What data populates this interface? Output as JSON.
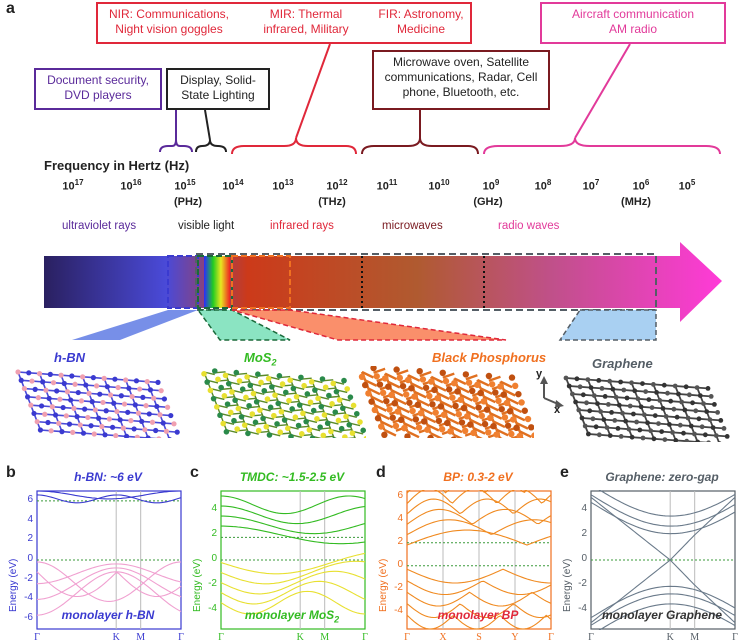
{
  "panel_a": {
    "letter": "a",
    "freq_heading": "Frequency in Hertz (Hz)",
    "frequencies": [
      {
        "base": "10",
        "exp": "17"
      },
      {
        "base": "10",
        "exp": "16"
      },
      {
        "base": "10",
        "exp": "15"
      },
      {
        "base": "10",
        "exp": "14"
      },
      {
        "base": "10",
        "exp": "13"
      },
      {
        "base": "10",
        "exp": "12"
      },
      {
        "base": "10",
        "exp": "11"
      },
      {
        "base": "10",
        "exp": "10"
      },
      {
        "base": "10",
        "exp": "9"
      },
      {
        "base": "10",
        "exp": "8"
      },
      {
        "base": "10",
        "exp": "7"
      },
      {
        "base": "10",
        "exp": "6"
      },
      {
        "base": "10",
        "exp": "5"
      }
    ],
    "units": {
      "phz": "(PHz)",
      "thz": "(THz)",
      "ghz": "(GHz)",
      "mhz": "(MHz)"
    },
    "bands": {
      "uv": "ultraviolet rays",
      "visible": "visible light",
      "ir": "infrared rays",
      "micro": "microwaves",
      "radio": "radio waves"
    },
    "callouts": {
      "nir": [
        "NIR: Communications,",
        "Night vision goggles"
      ],
      "mir": [
        "MIR: Thermal",
        "infrared, Military"
      ],
      "fir": [
        "FIR: Astronomy,",
        "Medicine"
      ],
      "aircraft": [
        "Aircraft communication",
        "AM radio"
      ],
      "doc": [
        "Document security,",
        "DVD players"
      ],
      "display": [
        "Display, Solid-",
        "State Lighting"
      ],
      "microwave": [
        "Microwave oven, Satellite",
        "communications, Radar, Cell",
        "phone, Bluetooth, etc."
      ]
    },
    "materials": {
      "hbn": "h-BN",
      "mos2": "MoS",
      "mos2_sub": "2",
      "bp": "Black Phosphorus",
      "graphene": "Graphene"
    },
    "axes_labels": {
      "x": "x",
      "y": "y"
    },
    "colors": {
      "blue": "#3a3ad0",
      "green": "#33bb22",
      "orange": "#f07020",
      "gray": "#555e66",
      "red": "#e0283a",
      "purple": "#5a2a9a",
      "maroon": "#7a1a20",
      "pink": "#e23a9a"
    }
  },
  "panels": [
    {
      "letter": "b",
      "title": "h-BN: ~6 eV",
      "foot": "monolayer h-BN",
      "ylabel": "Energy (eV)",
      "yticks": [
        "6",
        "4",
        "2",
        "0",
        "-2",
        "-4",
        "-6"
      ],
      "xticks": [
        "Γ",
        "K",
        "M",
        "Γ"
      ]
    },
    {
      "letter": "c",
      "title": "TMDC: ~1.5-2.5 eV",
      "foot": "monolayer MoS",
      "foot_sub": "2",
      "ylabel": "Energy (eV)",
      "yticks": [
        "4",
        "2",
        "0",
        "-2",
        "-4"
      ],
      "xticks": [
        "Γ",
        "K",
        "M",
        "Γ"
      ]
    },
    {
      "letter": "d",
      "title": "BP: 0.3-2 eV",
      "foot": "monolayer BP",
      "ylabel": "Energy (eV)",
      "yticks": [
        "6",
        "4",
        "2",
        "0",
        "-2",
        "-4"
      ],
      "xticks": [
        "Γ",
        "X",
        "S",
        "Y",
        "Γ"
      ]
    },
    {
      "letter": "e",
      "title": "Graphene: zero-gap",
      "foot": "monolayer Graphene",
      "ylabel": "Energy (eV)",
      "yticks": [
        "4",
        "2",
        "0",
        "-2",
        "-4"
      ],
      "xticks": [
        "Γ",
        "K",
        "M",
        "Γ"
      ]
    }
  ]
}
